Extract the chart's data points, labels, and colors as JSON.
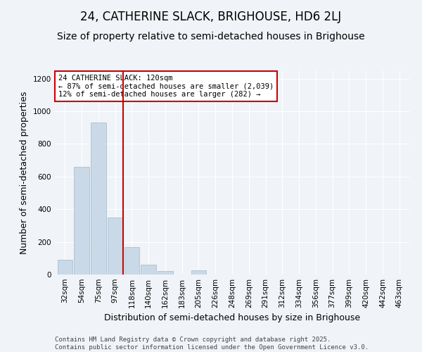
{
  "title": "24, CATHERINE SLACK, BRIGHOUSE, HD6 2LJ",
  "subtitle": "Size of property relative to semi-detached houses in Brighouse",
  "xlabel": "Distribution of semi-detached houses by size in Brighouse",
  "ylabel": "Number of semi-detached properties",
  "categories": [
    "32sqm",
    "54sqm",
    "75sqm",
    "97sqm",
    "118sqm",
    "140sqm",
    "162sqm",
    "183sqm",
    "205sqm",
    "226sqm",
    "248sqm",
    "269sqm",
    "291sqm",
    "312sqm",
    "334sqm",
    "356sqm",
    "377sqm",
    "399sqm",
    "420sqm",
    "442sqm",
    "463sqm"
  ],
  "values": [
    90,
    660,
    930,
    350,
    170,
    60,
    20,
    0,
    25,
    0,
    0,
    0,
    0,
    0,
    0,
    0,
    0,
    0,
    0,
    0,
    0
  ],
  "bar_color": "#c9d9e8",
  "bar_edge_color": "#a0b8cc",
  "vline_color": "#cc0000",
  "annotation_title": "24 CATHERINE SLACK: 120sqm",
  "annotation_line1": "← 87% of semi-detached houses are smaller (2,039)",
  "annotation_line2": "12% of semi-detached houses are larger (282) →",
  "annotation_box_color": "#cc0000",
  "ylim": [
    0,
    1250
  ],
  "yticks": [
    0,
    200,
    400,
    600,
    800,
    1000,
    1200
  ],
  "bg_color": "#f0f4f8",
  "footer_line1": "Contains HM Land Registry data © Crown copyright and database right 2025.",
  "footer_line2": "Contains public sector information licensed under the Open Government Licence v3.0.",
  "title_fontsize": 12,
  "subtitle_fontsize": 10,
  "axis_label_fontsize": 9,
  "tick_fontsize": 7.5,
  "footer_fontsize": 6.5
}
